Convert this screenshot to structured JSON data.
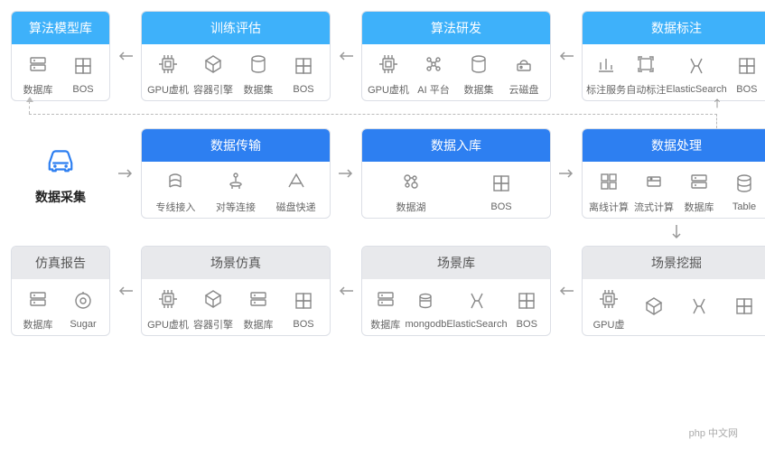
{
  "colors": {
    "lightblue": "#3eb1fa",
    "blue": "#2d7ff1",
    "gray": "#e8e9ec",
    "border": "#dcdfe6",
    "icon": "#888",
    "arrow": "#999",
    "text": "#666"
  },
  "arrow_style": {
    "stroke_width": 1.5,
    "dash": "3 3"
  },
  "start": {
    "label": "数据采集",
    "icon": "car"
  },
  "rows": {
    "top": [
      {
        "title": "算法模型库",
        "head": "lightblue",
        "items": [
          {
            "icon": "db",
            "label": "数据库"
          },
          {
            "icon": "bos",
            "label": "BOS"
          }
        ]
      },
      {
        "title": "训练评估",
        "head": "lightblue",
        "items": [
          {
            "icon": "chip",
            "label": "GPU虚机"
          },
          {
            "icon": "container",
            "label": "容器引擎"
          },
          {
            "icon": "dataset",
            "label": "数据集"
          },
          {
            "icon": "bos",
            "label": "BOS"
          }
        ]
      },
      {
        "title": "算法研发",
        "head": "lightblue",
        "items": [
          {
            "icon": "chip",
            "label": "GPU虚机"
          },
          {
            "icon": "ai",
            "label": "AI 平台"
          },
          {
            "icon": "dataset",
            "label": "数据集"
          },
          {
            "icon": "clouddisk",
            "label": "云磁盘"
          }
        ]
      },
      {
        "title": "数据标注",
        "head": "lightblue",
        "items": [
          {
            "icon": "anno",
            "label": "标注服务"
          },
          {
            "icon": "auto",
            "label": "自动标注"
          },
          {
            "icon": "es",
            "label": "ElasticSearch"
          },
          {
            "icon": "bos",
            "label": "BOS"
          }
        ]
      }
    ],
    "mid": [
      {
        "title": "数据传输",
        "head": "blue",
        "items": [
          {
            "icon": "wire",
            "label": "专线接入"
          },
          {
            "icon": "p2p",
            "label": "对等连接"
          },
          {
            "icon": "disk",
            "label": "磁盘快递"
          }
        ]
      },
      {
        "title": "数据入库",
        "head": "blue",
        "items": [
          {
            "icon": "lake",
            "label": "数据湖"
          },
          {
            "icon": "bos",
            "label": "BOS"
          }
        ]
      },
      {
        "title": "数据处理",
        "head": "blue",
        "items": [
          {
            "icon": "offline",
            "label": "离线计算"
          },
          {
            "icon": "stream",
            "label": "流式计算"
          },
          {
            "icon": "db",
            "label": "数据库"
          },
          {
            "icon": "table",
            "label": "Table"
          }
        ]
      }
    ],
    "bot": [
      {
        "title": "仿真报告",
        "head": "gray",
        "items": [
          {
            "icon": "db",
            "label": "数据库"
          },
          {
            "icon": "sugar",
            "label": "Sugar"
          }
        ]
      },
      {
        "title": "场景仿真",
        "head": "gray",
        "items": [
          {
            "icon": "chip",
            "label": "GPU虚机"
          },
          {
            "icon": "container",
            "label": "容器引擎"
          },
          {
            "icon": "db",
            "label": "数据库"
          },
          {
            "icon": "bos",
            "label": "BOS"
          }
        ]
      },
      {
        "title": "场景库",
        "head": "gray",
        "items": [
          {
            "icon": "db",
            "label": "数据库"
          },
          {
            "icon": "mongo",
            "label": "mongodb"
          },
          {
            "icon": "es",
            "label": "ElasticSearch"
          },
          {
            "icon": "bos",
            "label": "BOS"
          }
        ]
      },
      {
        "title": "场景挖掘",
        "head": "gray",
        "items": [
          {
            "icon": "chip",
            "label": "GPU虚"
          },
          {
            "icon": "container",
            "label": ""
          },
          {
            "icon": "es",
            "label": ""
          },
          {
            "icon": "bos",
            "label": ""
          }
        ]
      }
    ]
  },
  "watermark": "php 中文网"
}
